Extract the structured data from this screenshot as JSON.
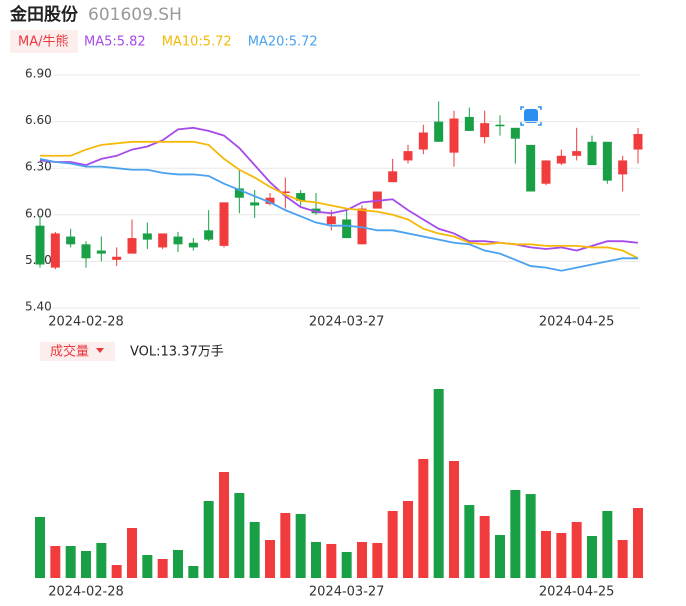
{
  "header": {
    "name": "金田股份",
    "code": "601609.SH"
  },
  "chart_data": [
    {
      "type": "candlestick",
      "button": "MA/牛熊",
      "up_color": "#f03c3c",
      "down_color": "#19a046",
      "ylim": [
        5.4,
        6.9
      ],
      "yticks": [
        {
          "value": 5.4,
          "label": "5.40"
        },
        {
          "value": 5.7,
          "label": "5.70"
        },
        {
          "value": 6.0,
          "label": "6.00"
        },
        {
          "value": 6.3,
          "label": "6.30"
        },
        {
          "value": 6.6,
          "label": "6.60"
        },
        {
          "value": 6.9,
          "label": "6.90"
        }
      ],
      "grid": true,
      "categories": [
        null,
        null,
        null,
        "2024-02-28",
        null,
        null,
        null,
        null,
        null,
        null,
        null,
        null,
        null,
        null,
        null,
        null,
        null,
        null,
        null,
        null,
        "2024-03-27",
        null,
        null,
        null,
        null,
        null,
        null,
        null,
        null,
        null,
        null,
        null,
        null,
        null,
        null,
        "2024-04-25",
        null,
        null,
        null,
        null
      ],
      "open": [
        5.93,
        5.66,
        5.86,
        5.81,
        5.77,
        5.71,
        5.75,
        5.88,
        5.79,
        5.86,
        5.82,
        5.9,
        5.8,
        6.17,
        6.08,
        6.07,
        6.14,
        6.14,
        6.04,
        5.94,
        5.97,
        5.81,
        6.04,
        6.21,
        6.35,
        6.42,
        6.6,
        6.4,
        6.63,
        6.5,
        6.58,
        6.56,
        6.45,
        6.2,
        6.33,
        6.38,
        6.47,
        6.47,
        6.26,
        6.42
      ],
      "close": [
        5.68,
        5.88,
        5.81,
        5.72,
        5.75,
        5.73,
        5.85,
        5.84,
        5.88,
        5.81,
        5.79,
        5.84,
        6.08,
        6.11,
        6.06,
        6.11,
        6.15,
        6.09,
        6.01,
        5.99,
        5.85,
        6.04,
        6.15,
        6.28,
        6.41,
        6.53,
        6.47,
        6.62,
        6.54,
        6.59,
        6.57,
        6.49,
        6.15,
        6.35,
        6.38,
        6.41,
        6.32,
        6.22,
        6.35,
        6.52
      ],
      "high": [
        5.99,
        5.89,
        5.91,
        5.83,
        5.86,
        5.79,
        5.97,
        5.95,
        5.88,
        5.89,
        5.85,
        6.03,
        6.08,
        6.29,
        6.16,
        6.14,
        6.24,
        6.16,
        6.14,
        6.03,
        6.04,
        6.06,
        6.15,
        6.36,
        6.45,
        6.58,
        6.73,
        6.67,
        6.69,
        6.67,
        6.64,
        6.56,
        6.45,
        6.35,
        6.42,
        6.56,
        6.51,
        6.47,
        6.38,
        6.56
      ],
      "low": [
        5.66,
        5.65,
        5.79,
        5.66,
        5.7,
        5.67,
        5.75,
        5.78,
        5.78,
        5.76,
        5.77,
        5.83,
        5.79,
        6.01,
        5.98,
        6.06,
        6.04,
        6.06,
        6.0,
        5.9,
        5.85,
        5.81,
        6.04,
        6.21,
        6.33,
        6.39,
        6.47,
        6.31,
        6.54,
        6.46,
        6.51,
        6.33,
        6.15,
        6.19,
        6.32,
        6.35,
        6.32,
        6.2,
        6.15,
        6.33
      ],
      "series": [
        {
          "name": "MA5",
          "label": "MA5:5.82",
          "color": "#a64bea",
          "values": [
            6.35,
            6.34,
            6.34,
            6.32,
            6.36,
            6.38,
            6.42,
            6.44,
            6.48,
            6.55,
            6.56,
            6.54,
            6.51,
            6.43,
            6.32,
            6.21,
            6.12,
            6.05,
            6.02,
            6.01,
            6.03,
            6.08,
            6.09,
            6.1,
            6.03,
            5.97,
            5.91,
            5.88,
            5.83,
            5.83,
            5.82,
            5.81,
            5.79,
            5.78,
            5.79,
            5.77,
            5.8,
            5.83,
            5.83,
            5.82
          ]
        },
        {
          "name": "MA10",
          "label": "MA10:5.72",
          "color": "#f5b90a",
          "values": [
            6.38,
            6.38,
            6.38,
            6.42,
            6.45,
            6.46,
            6.47,
            6.47,
            6.47,
            6.47,
            6.47,
            6.45,
            6.36,
            6.29,
            6.24,
            6.18,
            6.13,
            6.09,
            6.08,
            6.06,
            6.04,
            6.03,
            6.02,
            6.0,
            5.97,
            5.91,
            5.88,
            5.86,
            5.82,
            5.81,
            5.82,
            5.81,
            5.81,
            5.8,
            5.8,
            5.8,
            5.79,
            5.79,
            5.77,
            5.72
          ]
        },
        {
          "name": "MA20",
          "label": "MA20:5.72",
          "color": "#4aa2ee",
          "values": [
            6.36,
            6.34,
            6.33,
            6.31,
            6.31,
            6.3,
            6.29,
            6.29,
            6.27,
            6.26,
            6.26,
            6.25,
            6.2,
            6.16,
            6.12,
            6.08,
            6.03,
            5.99,
            5.95,
            5.93,
            5.93,
            5.92,
            5.9,
            5.9,
            5.88,
            5.86,
            5.84,
            5.82,
            5.81,
            5.77,
            5.75,
            5.71,
            5.67,
            5.66,
            5.64,
            5.66,
            5.68,
            5.7,
            5.72,
            5.72
          ]
        }
      ]
    },
    {
      "type": "bar",
      "button": "成交量",
      "label": "VOL:13.37万手",
      "categories": [
        null,
        null,
        null,
        "2024-02-28",
        null,
        null,
        null,
        null,
        null,
        null,
        null,
        null,
        null,
        null,
        null,
        null,
        null,
        null,
        null,
        null,
        "2024-03-27",
        null,
        null,
        null,
        null,
        null,
        null,
        null,
        null,
        null,
        null,
        null,
        null,
        null,
        null,
        "2024-04-25",
        null,
        null,
        null,
        null
      ],
      "values": [
        11.65,
        6.11,
        6.11,
        5.16,
        6.69,
        2.48,
        9.55,
        4.39,
        3.63,
        5.35,
        2.29,
        14.71,
        20.25,
        16.24,
        10.7,
        7.26,
        12.42,
        12.23,
        6.88,
        6.5,
        4.97,
        6.88,
        6.69,
        12.8,
        14.71,
        22.73,
        36.1,
        22.35,
        13.94,
        11.84,
        8.21,
        16.81,
        16.04,
        8.98,
        8.6,
        10.7,
        8.02,
        12.8,
        7.26,
        13.37
      ]
    }
  ]
}
